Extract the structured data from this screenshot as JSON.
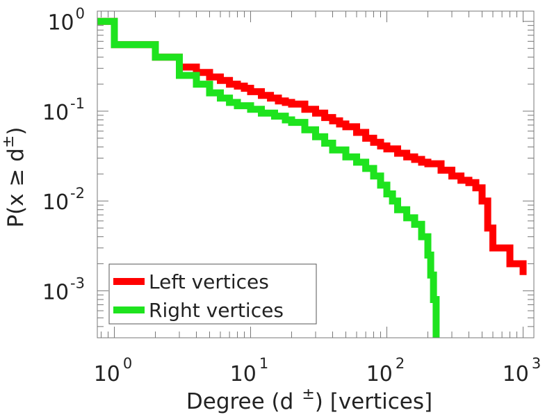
{
  "chart_data": {
    "type": "line",
    "step": true,
    "xscale": "log",
    "yscale": "log",
    "xlim": [
      0.75,
      1200
    ],
    "ylim": [
      0.0003,
      1.3
    ],
    "xlabel": {
      "text": "Degree (d",
      "sup": "±",
      "rest": ") [vertices]"
    },
    "ylabel": {
      "text": "P(x ≥ d",
      "sup": "±",
      "rest": ")"
    },
    "xticks": [
      {
        "value": 1,
        "base": "10",
        "exp": "0"
      },
      {
        "value": 10,
        "base": "10",
        "exp": "1"
      },
      {
        "value": 100,
        "base": "10",
        "exp": "2"
      },
      {
        "value": 1000,
        "base": "10",
        "exp": "3"
      }
    ],
    "yticks": [
      {
        "value": 1,
        "base": "10",
        "exp": "0"
      },
      {
        "value": 0.1,
        "base": "10",
        "exp": "-1"
      },
      {
        "value": 0.01,
        "base": "10",
        "exp": "-2"
      },
      {
        "value": 0.001,
        "base": "10",
        "exp": "-3"
      }
    ],
    "legend": {
      "location": "bottom-left"
    },
    "series": [
      {
        "name": "Left vertices",
        "color": "#ff0000",
        "x": [
          0.75,
          1,
          2,
          3,
          4,
          5,
          6,
          7,
          8,
          9,
          10,
          12,
          14,
          16,
          18,
          20,
          25,
          30,
          35,
          40,
          45,
          50,
          60,
          70,
          80,
          90,
          100,
          120,
          140,
          160,
          180,
          200,
          250,
          300,
          350,
          400,
          450,
          500,
          550,
          600,
          800,
          1000
        ],
        "y": [
          1.0,
          0.55,
          0.4,
          0.31,
          0.27,
          0.24,
          0.22,
          0.2,
          0.19,
          0.18,
          0.165,
          0.15,
          0.14,
          0.13,
          0.125,
          0.12,
          0.105,
          0.095,
          0.085,
          0.078,
          0.072,
          0.067,
          0.058,
          0.05,
          0.045,
          0.041,
          0.038,
          0.034,
          0.031,
          0.029,
          0.027,
          0.026,
          0.022,
          0.019,
          0.017,
          0.016,
          0.014,
          0.01,
          0.005,
          0.003,
          0.002,
          0.0015
        ]
      },
      {
        "name": "Right vertices",
        "color": "#1ee31e",
        "x": [
          0.75,
          1,
          2,
          3,
          4,
          5,
          6,
          7,
          8,
          10,
          12,
          15,
          18,
          20,
          25,
          30,
          35,
          40,
          50,
          60,
          70,
          80,
          90,
          100,
          110,
          120,
          140,
          160,
          180,
          200,
          210,
          220,
          230
        ],
        "y": [
          1.0,
          0.55,
          0.4,
          0.25,
          0.2,
          0.16,
          0.14,
          0.125,
          0.115,
          0.105,
          0.095,
          0.088,
          0.08,
          0.075,
          0.062,
          0.052,
          0.044,
          0.037,
          0.031,
          0.027,
          0.023,
          0.019,
          0.015,
          0.012,
          0.01,
          0.008,
          0.0065,
          0.0055,
          0.004,
          0.0025,
          0.0015,
          0.0008,
          0.0003
        ]
      }
    ]
  }
}
